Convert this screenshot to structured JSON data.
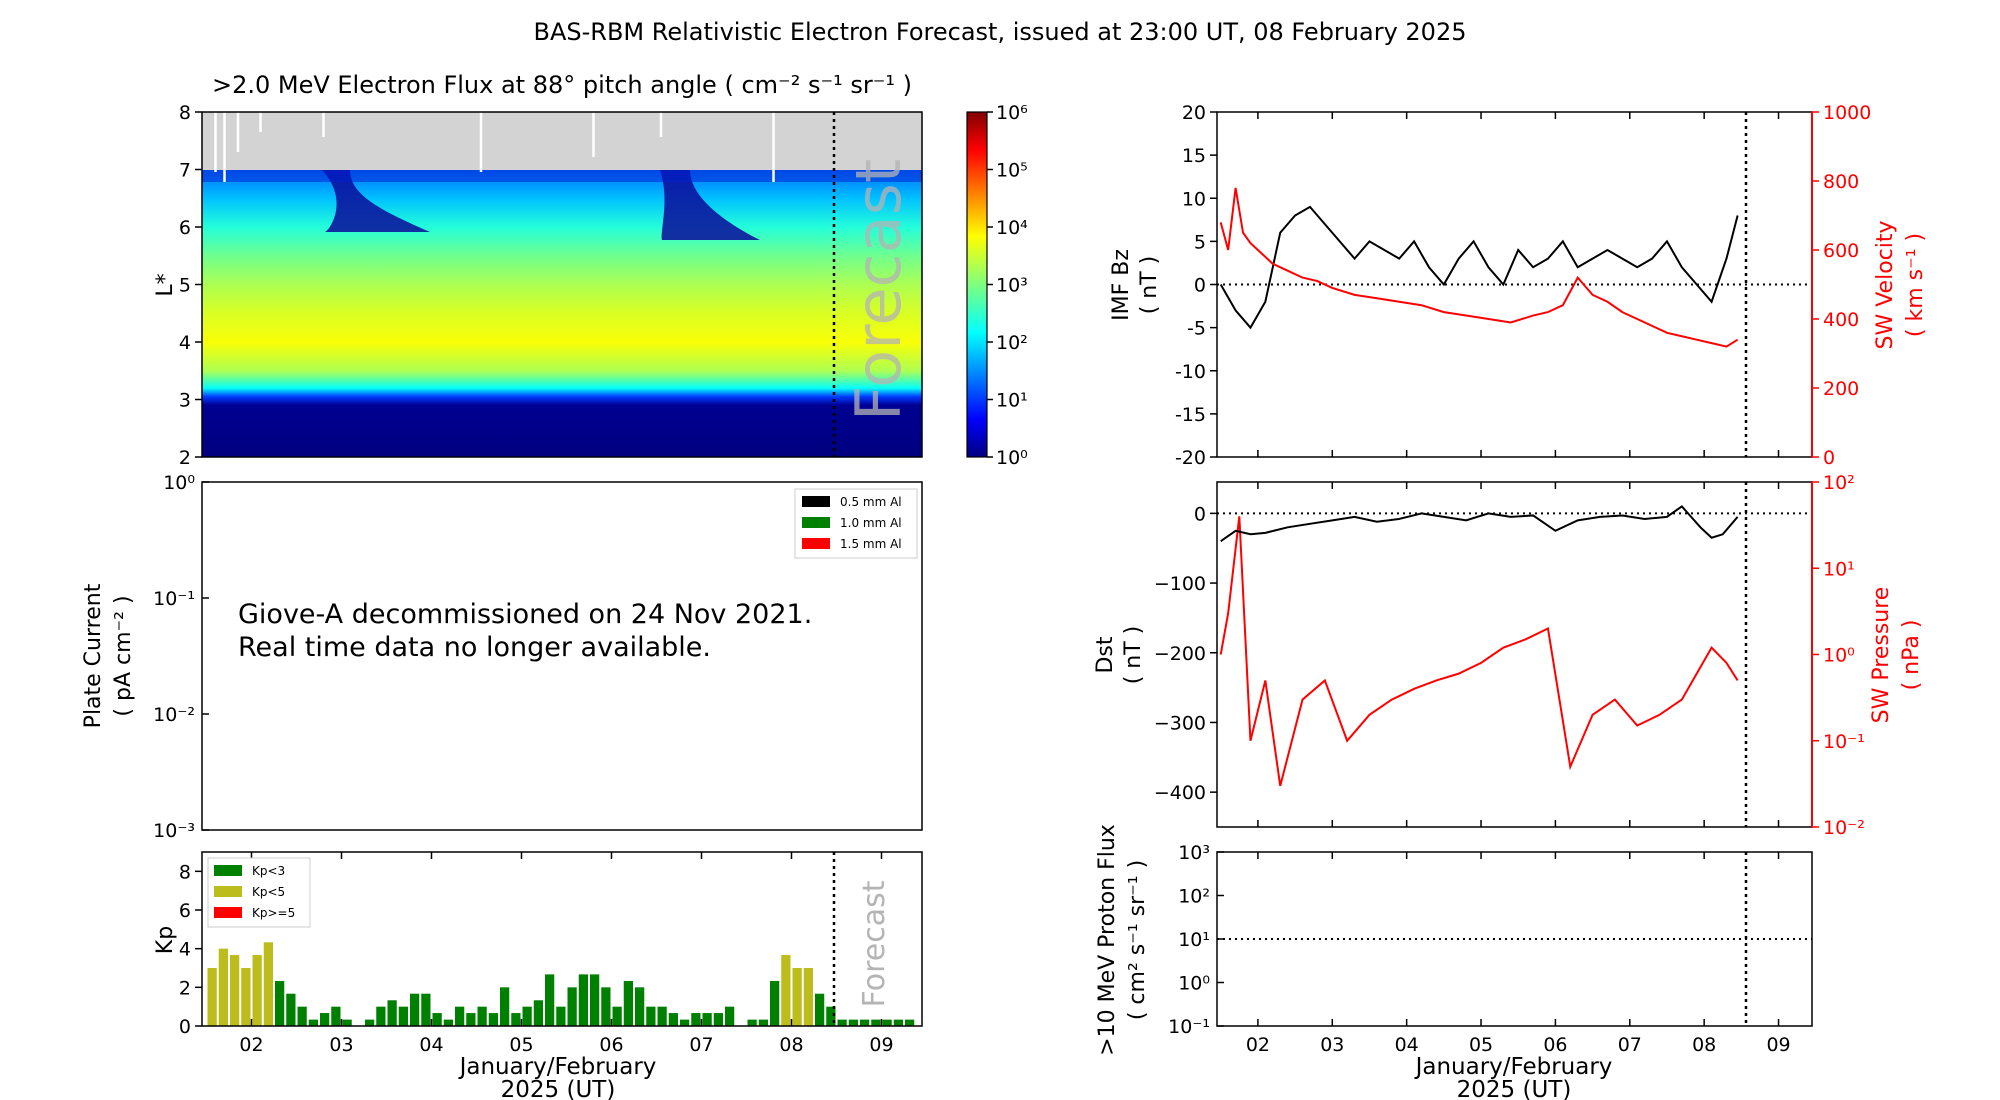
{
  "figure_title": "BAS-RBM Relativistic Electron Forecast, issued at 23:00 UT, 08 February 2025",
  "colors": {
    "flux_black": "#000000",
    "flux_green": "#008000",
    "flux_red": "#ff0000",
    "kp_green": "#008000",
    "kp_yellow": "#bcbc1c",
    "kp_red": "#ff0000",
    "sw_red": "#ff0000",
    "forecast_gray": "#b4b4b4",
    "no_data_gray": "#d3d3d3"
  },
  "date_axis": {
    "range": [
      1.45,
      9.45
    ],
    "ticks": [
      2,
      3,
      4,
      5,
      6,
      7,
      8,
      9
    ],
    "tick_labels": [
      "02",
      "03",
      "04",
      "05",
      "06",
      "07",
      "08",
      "09"
    ],
    "xlabel_line1": "January/February",
    "xlabel_line2": "2025 (UT)",
    "forecast_start": 8.458
  },
  "chart_data": [
    {
      "id": "electron_flux",
      "type": "heatmap",
      "title": ">2.0 MeV Electron Flux at 88° pitch angle ( cm⁻² s⁻¹ sr⁻¹ )",
      "ylabel": "L*",
      "ylim": [
        2,
        8
      ],
      "yticks": [
        2,
        3,
        4,
        5,
        6,
        7,
        8
      ],
      "forecast_label": "Forecast",
      "no_data_above_L": 7,
      "colorbar": {
        "scale": "log",
        "range": [
          1,
          1000000
        ],
        "tick_labels": [
          "10⁰",
          "10¹",
          "10²",
          "10³",
          "10⁴",
          "10⁵",
          "10⁶"
        ]
      },
      "gray_region_dropouts": [
        1.6,
        1.7,
        1.85,
        2.1,
        2.8,
        4.55,
        5.8,
        6.55,
        7.8
      ],
      "radial_profile": [
        {
          "L": 2.0,
          "log_flux": 0.0
        },
        {
          "L": 2.9,
          "log_flux": 0.1
        },
        {
          "L": 3.05,
          "log_flux": 1.0
        },
        {
          "L": 3.2,
          "log_flux": 2.2
        },
        {
          "L": 3.5,
          "log_flux": 3.3
        },
        {
          "L": 4.0,
          "log_flux": 3.8
        },
        {
          "L": 4.5,
          "log_flux": 3.6
        },
        {
          "L": 5.0,
          "log_flux": 3.3
        },
        {
          "L": 5.5,
          "log_flux": 2.9
        },
        {
          "L": 6.0,
          "log_flux": 2.4
        },
        {
          "L": 6.5,
          "log_flux": 1.8
        },
        {
          "L": 7.0,
          "log_flux": 1.3
        }
      ]
    },
    {
      "id": "plate_current",
      "type": "line",
      "ylabel_line1": "Plate Current",
      "ylabel_line2": "( pA cm⁻² )",
      "yscale": "log",
      "ylim": [
        0.001,
        1
      ],
      "ytick_labels": [
        "10⁰",
        "10⁻¹",
        "10⁻²",
        "10⁻³"
      ],
      "legend": [
        "0.5 mm Al",
        "1.0 mm Al",
        "1.5 mm Al"
      ],
      "message_line1": "Giove-A decommissioned on 24 Nov 2021.",
      "message_line2": "Real time data no longer available.",
      "series": []
    },
    {
      "id": "kp",
      "type": "bar",
      "ylabel": "Kp",
      "ylim": [
        0,
        9
      ],
      "yticks": [
        0,
        2,
        4,
        6,
        8
      ],
      "legend": [
        "Kp<3",
        "Kp<5",
        "Kp>=5"
      ],
      "forecast_label": "Forecast",
      "bar_start_day": 1.5,
      "bar_width_days": 0.125,
      "values": [
        3.0,
        4.0,
        3.67,
        3.0,
        3.67,
        4.33,
        2.33,
        1.67,
        1.0,
        0.33,
        0.67,
        1.0,
        0.33,
        0,
        0.33,
        1.0,
        1.33,
        1.0,
        1.67,
        1.67,
        0.67,
        0.33,
        1.0,
        0.67,
        1.0,
        0.67,
        2.0,
        0.67,
        1.0,
        1.33,
        2.67,
        1.0,
        2.0,
        2.67,
        2.67,
        2.0,
        1.0,
        2.33,
        2.0,
        1.0,
        1.0,
        0.67,
        0.33,
        0.67,
        0.67,
        0.67,
        1.0,
        0,
        0.33,
        0.33,
        2.33,
        3.67,
        3.0,
        3.0,
        1.67,
        1.0,
        0.33,
        0.33,
        0.33,
        0.33,
        0.33,
        0.33,
        0.33
      ]
    },
    {
      "id": "imf_bz_sw_velocity",
      "type": "line",
      "ylabel_line1": "IMF Bz",
      "ylabel_line2": "( nT )",
      "ylim": [
        -20,
        20
      ],
      "yticks": [
        -20,
        -15,
        -10,
        -5,
        0,
        5,
        10,
        15,
        20
      ],
      "y2label_line1": "SW Velocity",
      "y2label_line2": "( km s⁻¹ )",
      "y2lim": [
        0,
        1000
      ],
      "y2ticks": [
        0,
        200,
        400,
        600,
        800,
        1000
      ],
      "series": [
        {
          "name": "IMF Bz",
          "color": "#000000",
          "x": [
            1.5,
            1.7,
            1.9,
            2.1,
            2.3,
            2.5,
            2.7,
            2.9,
            3.1,
            3.3,
            3.5,
            3.7,
            3.9,
            4.1,
            4.3,
            4.5,
            4.7,
            4.9,
            5.1,
            5.3,
            5.5,
            5.7,
            5.9,
            6.1,
            6.3,
            6.5,
            6.7,
            6.9,
            7.1,
            7.3,
            7.5,
            7.7,
            7.9,
            8.1,
            8.3,
            8.45
          ],
          "y": [
            0,
            -3,
            -5,
            -2,
            6,
            8,
            9,
            7,
            5,
            3,
            5,
            4,
            3,
            5,
            2,
            0,
            3,
            5,
            2,
            0,
            4,
            2,
            3,
            5,
            2,
            3,
            4,
            3,
            2,
            3,
            5,
            2,
            0,
            -2,
            3,
            8
          ]
        },
        {
          "name": "SW Velocity",
          "color": "#ff0000",
          "axis": "right",
          "x": [
            1.5,
            1.6,
            1.7,
            1.8,
            1.9,
            2.0,
            2.2,
            2.4,
            2.6,
            2.8,
            3.0,
            3.3,
            3.6,
            3.9,
            4.2,
            4.5,
            4.8,
            5.1,
            5.4,
            5.7,
            5.9,
            6.1,
            6.3,
            6.5,
            6.7,
            6.9,
            7.1,
            7.3,
            7.5,
            7.7,
            7.9,
            8.1,
            8.3,
            8.45
          ],
          "y": [
            680,
            600,
            780,
            650,
            620,
            600,
            560,
            540,
            520,
            510,
            490,
            470,
            460,
            450,
            440,
            420,
            410,
            400,
            390,
            410,
            420,
            440,
            520,
            470,
            450,
            420,
            400,
            380,
            360,
            350,
            340,
            330,
            320,
            340
          ]
        }
      ],
      "zero_line": 0
    },
    {
      "id": "dst_sw_pressure",
      "type": "line",
      "ylabel_line1": "Dst",
      "ylabel_line2": "( nT )",
      "ylim": [
        -450,
        45
      ],
      "yticks": [
        -400,
        -300,
        -200,
        -100,
        0
      ],
      "y2label_line1": "SW Pressure",
      "y2label_line2": "( nPa )",
      "y2scale": "log",
      "y2lim": [
        0.01,
        100
      ],
      "y2tick_labels": [
        "10⁻²",
        "10⁻¹",
        "10⁰",
        "10¹",
        "10²"
      ],
      "series": [
        {
          "name": "Dst",
          "color": "#000000",
          "x": [
            1.5,
            1.7,
            1.9,
            2.1,
            2.4,
            2.7,
            3.0,
            3.3,
            3.6,
            3.9,
            4.2,
            4.5,
            4.8,
            5.1,
            5.4,
            5.7,
            6.0,
            6.3,
            6.6,
            6.9,
            7.2,
            7.5,
            7.7,
            7.8,
            7.95,
            8.1,
            8.25,
            8.45
          ],
          "y": [
            -40,
            -25,
            -30,
            -28,
            -20,
            -15,
            -10,
            -5,
            -12,
            -8,
            0,
            -5,
            -10,
            0,
            -5,
            -3,
            -25,
            -10,
            -5,
            -3,
            -8,
            -5,
            10,
            -2,
            -20,
            -35,
            -30,
            -5
          ]
        },
        {
          "name": "SW Pressure",
          "color": "#ff0000",
          "axis": "right",
          "x": [
            1.5,
            1.6,
            1.75,
            1.9,
            2.1,
            2.3,
            2.6,
            2.9,
            3.2,
            3.5,
            3.8,
            4.1,
            4.4,
            4.7,
            5.0,
            5.3,
            5.6,
            5.9,
            6.2,
            6.5,
            6.8,
            7.1,
            7.4,
            7.7,
            7.9,
            8.1,
            8.3,
            8.45
          ],
          "y": [
            1.0,
            3.0,
            40,
            0.1,
            0.5,
            0.03,
            0.3,
            0.5,
            0.1,
            0.2,
            0.3,
            0.4,
            0.5,
            0.6,
            0.8,
            1.2,
            1.5,
            2.0,
            0.05,
            0.2,
            0.3,
            0.15,
            0.2,
            0.3,
            0.6,
            1.2,
            0.8,
            0.5
          ]
        }
      ],
      "zero_line": 0
    },
    {
      "id": "proton_flux",
      "type": "line",
      "ylabel_line1": ">10 MeV Proton Flux",
      "ylabel_line2": "( cm² s⁻¹ sr⁻¹ )",
      "yscale": "log",
      "ylim": [
        0.1,
        1000
      ],
      "ytick_labels": [
        "10⁻¹",
        "10⁰",
        "10¹",
        "10²",
        "10³"
      ],
      "threshold": 10,
      "series": []
    }
  ]
}
